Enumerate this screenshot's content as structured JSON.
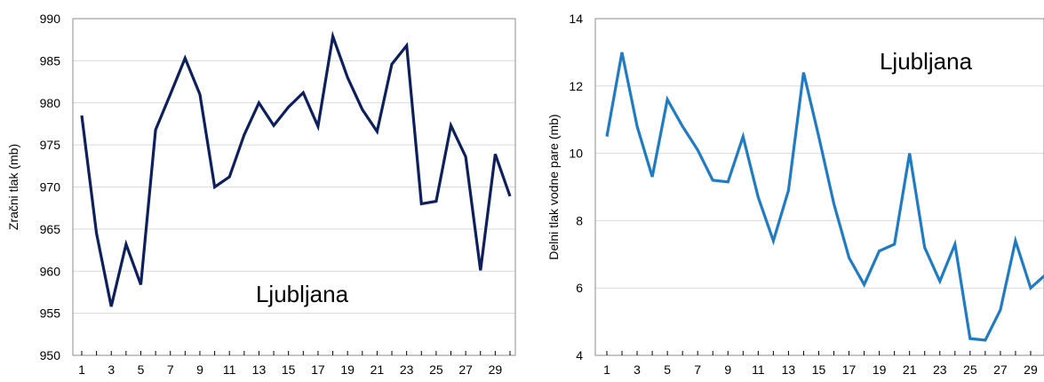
{
  "chart_data": [
    {
      "type": "line",
      "title": "",
      "annotation": "Ljubljana",
      "xlabel": "",
      "ylabel": "Zračni tlak (mb)",
      "x": [
        1,
        2,
        3,
        4,
        5,
        6,
        7,
        8,
        9,
        10,
        11,
        12,
        13,
        14,
        15,
        16,
        17,
        18,
        19,
        20,
        21,
        22,
        23,
        24,
        25,
        26,
        27,
        28,
        29,
        30
      ],
      "xticklabels": [
        "1",
        "3",
        "5",
        "7",
        "9",
        "11",
        "13",
        "15",
        "17",
        "19",
        "21",
        "23",
        "25",
        "27",
        "29"
      ],
      "ylim": [
        950,
        990
      ],
      "yticks": [
        "950",
        "955",
        "960",
        "965",
        "970",
        "975",
        "980",
        "985",
        "990"
      ],
      "grid": true,
      "color": "#0d1f5c",
      "series": [
        {
          "values": [
            978.5,
            964.5,
            955.8,
            963.2,
            958.4,
            976.8,
            981.0,
            985.3,
            981.0,
            970.0,
            971.2,
            976.2,
            980.0,
            977.3,
            979.5,
            981.2,
            977.2,
            987.9,
            983.0,
            979.2,
            976.6,
            984.6,
            986.8,
            968.0,
            968.3,
            977.3,
            973.6,
            960.1,
            973.9,
            968.9
          ]
        }
      ]
    },
    {
      "type": "line",
      "title": "",
      "annotation": "Ljubljana",
      "xlabel": "",
      "ylabel": "Delni tlak vodne pare (mb)",
      "x": [
        1,
        2,
        3,
        4,
        5,
        6,
        7,
        8,
        9,
        10,
        11,
        12,
        13,
        14,
        15,
        16,
        17,
        18,
        19,
        20,
        21,
        22,
        23,
        24,
        25,
        26,
        27,
        28,
        29,
        30
      ],
      "xticklabels": [
        "1",
        "3",
        "5",
        "7",
        "9",
        "11",
        "13",
        "15",
        "17",
        "19",
        "21",
        "23",
        "25",
        "27",
        "29"
      ],
      "ylim": [
        4,
        14
      ],
      "yticks": [
        "4",
        "6",
        "8",
        "10",
        "12",
        "14"
      ],
      "grid": true,
      "color": "#1f7bc4",
      "series": [
        {
          "values": [
            10.5,
            13.0,
            10.8,
            9.3,
            11.6,
            10.8,
            10.1,
            9.2,
            9.15,
            10.5,
            8.7,
            7.4,
            8.9,
            12.4,
            10.5,
            8.5,
            6.9,
            6.1,
            7.1,
            7.3,
            10.0,
            7.2,
            6.2,
            7.3,
            4.5,
            4.45,
            5.35,
            7.4,
            6.0,
            6.4
          ]
        }
      ]
    }
  ]
}
